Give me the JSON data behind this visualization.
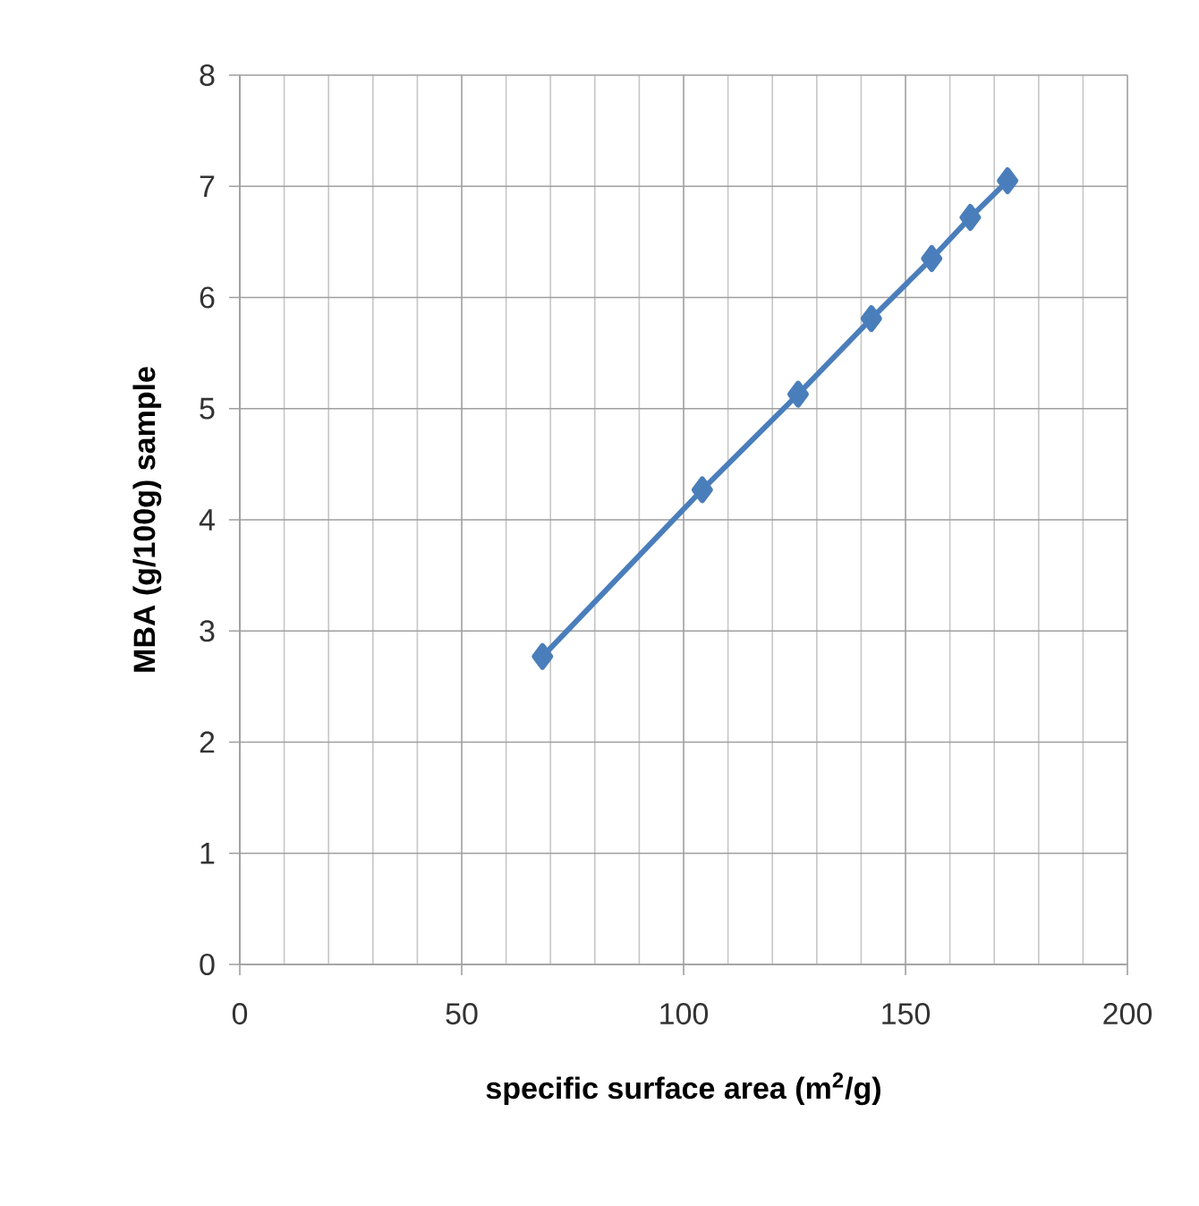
{
  "chart_data": {
    "type": "line",
    "xlabel": "specific surface area  (m$^{2}$/g)",
    "ylabel": "MBA (g/100g) sample",
    "x": [
      68.2,
      104.2,
      125.8,
      142.3,
      155.9,
      164.6,
      173.0
    ],
    "series": [
      {
        "color": "#4a7ebb",
        "values": [
          2.77,
          4.27,
          5.13,
          5.81,
          6.35,
          6.72,
          7.05
        ]
      }
    ],
    "xlim": [
      0,
      200
    ],
    "ylim": [
      0,
      8
    ],
    "xticks": [
      0,
      50,
      100,
      150,
      200
    ],
    "yticks": [
      0,
      1,
      2,
      3,
      4,
      5,
      6,
      7,
      8
    ],
    "grid": true,
    "marker": "diamond",
    "line_style": "solid"
  }
}
